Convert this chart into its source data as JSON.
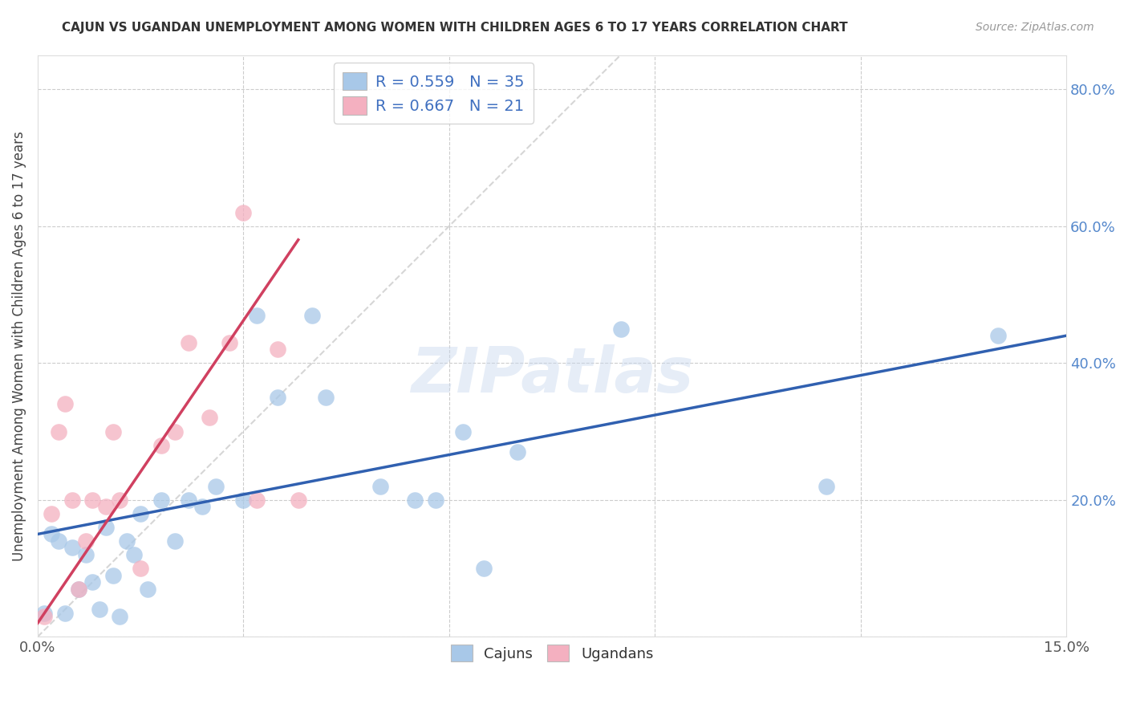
{
  "title": "CAJUN VS UGANDAN UNEMPLOYMENT AMONG WOMEN WITH CHILDREN AGES 6 TO 17 YEARS CORRELATION CHART",
  "source": "Source: ZipAtlas.com",
  "ylabel": "Unemployment Among Women with Children Ages 6 to 17 years",
  "xlim": [
    0.0,
    0.15
  ],
  "ylim": [
    0.0,
    0.85
  ],
  "yticks_right": [
    0.0,
    0.2,
    0.4,
    0.6,
    0.8
  ],
  "cajun_color": "#a8c8e8",
  "ugandan_color": "#f4b0c0",
  "cajun_line_color": "#3060b0",
  "ugandan_line_color": "#d04060",
  "diagonal_color": "#cccccc",
  "watermark": "ZIPatlas",
  "background_color": "#ffffff",
  "grid_color": "#cccccc",
  "cajun_x": [
    0.001,
    0.002,
    0.003,
    0.004,
    0.005,
    0.006,
    0.007,
    0.008,
    0.009,
    0.01,
    0.011,
    0.012,
    0.013,
    0.014,
    0.015,
    0.016,
    0.018,
    0.02,
    0.022,
    0.024,
    0.026,
    0.03,
    0.032,
    0.035,
    0.04,
    0.042,
    0.05,
    0.055,
    0.058,
    0.062,
    0.065,
    0.07,
    0.085,
    0.115,
    0.14
  ],
  "cajun_y": [
    0.035,
    0.15,
    0.14,
    0.035,
    0.13,
    0.07,
    0.12,
    0.08,
    0.04,
    0.16,
    0.09,
    0.03,
    0.14,
    0.12,
    0.18,
    0.07,
    0.2,
    0.14,
    0.2,
    0.19,
    0.22,
    0.2,
    0.47,
    0.35,
    0.47,
    0.35,
    0.22,
    0.2,
    0.2,
    0.3,
    0.1,
    0.27,
    0.45,
    0.22,
    0.44
  ],
  "ugandan_x": [
    0.001,
    0.002,
    0.003,
    0.004,
    0.005,
    0.006,
    0.007,
    0.008,
    0.01,
    0.011,
    0.012,
    0.015,
    0.018,
    0.02,
    0.022,
    0.025,
    0.028,
    0.03,
    0.032,
    0.035,
    0.038
  ],
  "ugandan_y": [
    0.03,
    0.18,
    0.3,
    0.34,
    0.2,
    0.07,
    0.14,
    0.2,
    0.19,
    0.3,
    0.2,
    0.1,
    0.28,
    0.3,
    0.43,
    0.32,
    0.43,
    0.62,
    0.2,
    0.42,
    0.2
  ],
  "cajun_line_x0": 0.0,
  "cajun_line_y0": 0.15,
  "cajun_line_x1": 0.15,
  "cajun_line_y1": 0.44,
  "ugandan_line_x0": 0.0,
  "ugandan_line_y0": 0.02,
  "ugandan_line_x1": 0.038,
  "ugandan_line_y1": 0.58
}
